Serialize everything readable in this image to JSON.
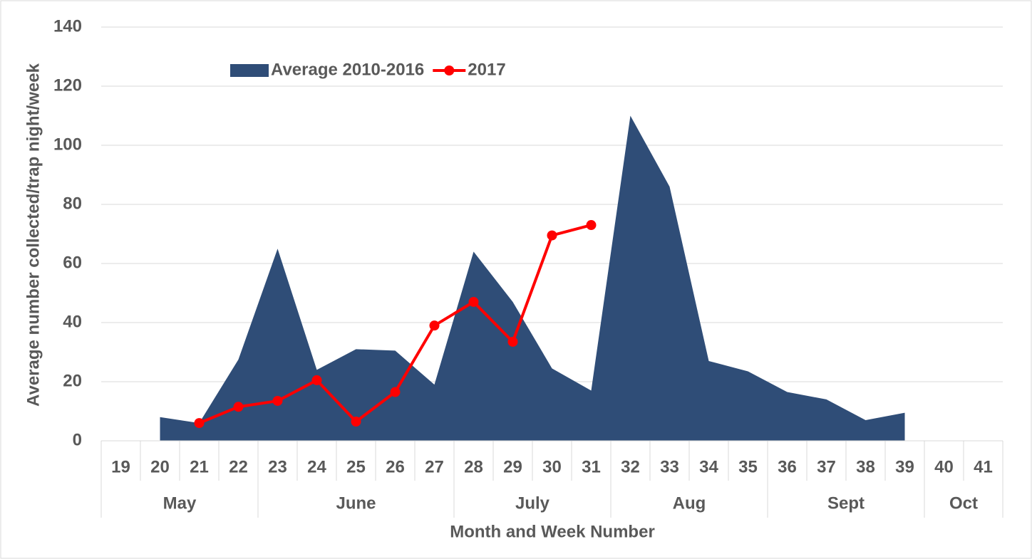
{
  "chart_data": {
    "type": "area-line",
    "y_label": "Average number collected/trap night/week",
    "x_label": "Month and Week Number",
    "categories": [
      "19",
      "20",
      "21",
      "22",
      "23",
      "24",
      "25",
      "26",
      "27",
      "28",
      "29",
      "30",
      "31",
      "32",
      "33",
      "34",
      "35",
      "36",
      "37",
      "38",
      "39",
      "40",
      "41"
    ],
    "groups": [
      {
        "label": "May",
        "span": 4
      },
      {
        "label": "June",
        "span": 5
      },
      {
        "label": "July",
        "span": 4
      },
      {
        "label": "Aug",
        "span": 4
      },
      {
        "label": "Sept",
        "span": 4
      },
      {
        "label": "Oct",
        "span": 2
      }
    ],
    "series": [
      {
        "name": "Average 2010-2016",
        "type": "area",
        "color": "#2f4d77",
        "values": [
          null,
          8,
          6,
          27.5,
          65,
          24,
          31,
          30.5,
          19,
          64,
          47,
          24.5,
          17,
          110,
          86,
          27,
          23.5,
          16.5,
          14,
          7,
          9.5,
          null,
          null
        ]
      },
      {
        "name": "2017",
        "type": "line",
        "color": "#ff0000",
        "values": [
          null,
          null,
          6,
          11.5,
          13.5,
          20.5,
          6.5,
          16.5,
          39,
          47,
          33.5,
          69.5,
          73,
          null,
          null,
          null,
          null,
          null,
          null,
          null,
          null,
          null,
          null
        ]
      }
    ],
    "ylim": [
      0,
      140
    ],
    "yticks": [
      0,
      20,
      40,
      60,
      80,
      100,
      120,
      140
    ],
    "grid": true,
    "legend": "top"
  }
}
